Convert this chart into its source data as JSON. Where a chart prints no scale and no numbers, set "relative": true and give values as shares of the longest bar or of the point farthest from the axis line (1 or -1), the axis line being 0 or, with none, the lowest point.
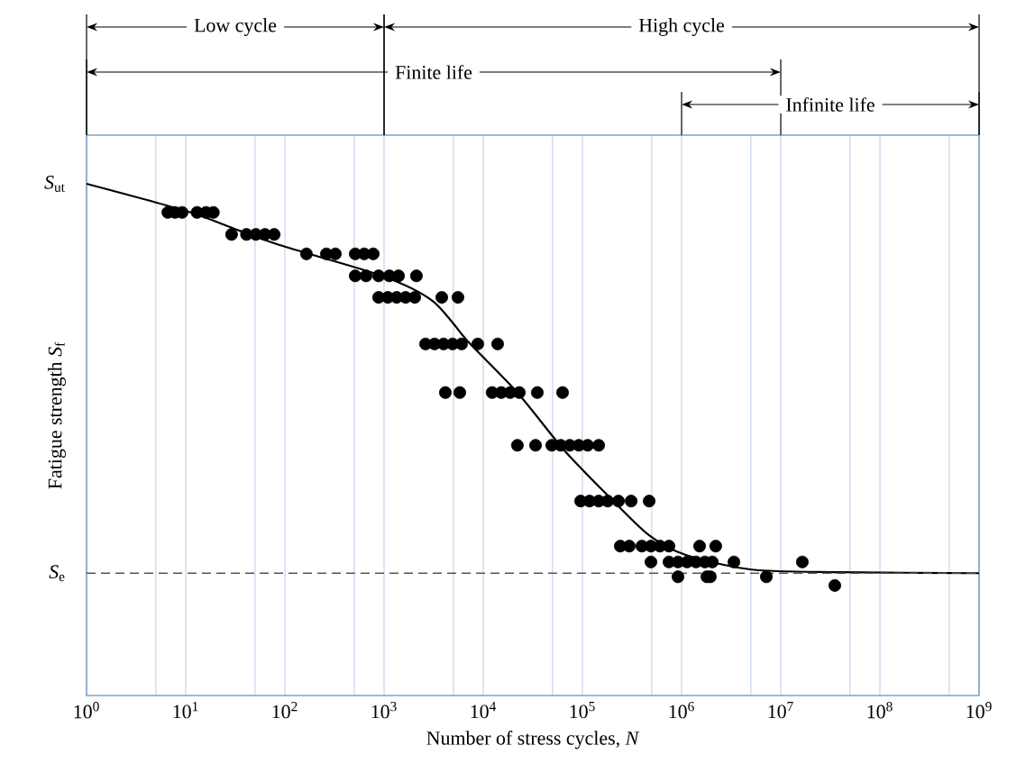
{
  "chart_data": {
    "type": "scatter",
    "relative": true,
    "log": "x",
    "grid": "x",
    "marker": "circle",
    "xlabel": "Number of stress cycles, *N*",
    "ylabel": "Fatigue strength *S*$_{f}$",
    "xlim": [
      1,
      1000000000
    ],
    "xticks": [
      {
        "value": 1,
        "label": "10$^{0}$"
      },
      {
        "value": 5,
        "label": null
      },
      {
        "value": 10,
        "label": "10$^{1}$"
      },
      {
        "value": 50,
        "label": null
      },
      {
        "value": 100,
        "label": "10$^{2}$"
      },
      {
        "value": 500,
        "label": null
      },
      {
        "value": 1000,
        "label": "10$^{3}$"
      },
      {
        "value": 5000,
        "label": null
      },
      {
        "value": 10000,
        "label": "10$^{4}$"
      },
      {
        "value": 50000,
        "label": null
      },
      {
        "value": 100000,
        "label": "10$^{5}$"
      },
      {
        "value": 500000,
        "label": null
      },
      {
        "value": 1000000,
        "label": "10$^{6}$"
      },
      {
        "value": 5000000,
        "label": null
      },
      {
        "value": 10000000,
        "label": "10$^{7}$"
      },
      {
        "value": 50000000,
        "label": null
      },
      {
        "value": 100000000,
        "label": "10$^{8}$"
      },
      {
        "value": 500000000,
        "label": null
      },
      {
        "value": 1000000000,
        "label": "10$^{9}$"
      }
    ],
    "series": [
      {
        "color": "#000000",
        "x": [
          6.6,
          7.8,
          9.2,
          13,
          16,
          19,
          29,
          41,
          51,
          63,
          78,
          165,
          262,
          323,
          512,
          631,
          778,
          512,
          658,
          881,
          1130,
          1400,
          2120,
          881,
          1090,
          1340,
          1650,
          2040,
          3820,
          5560,
          2620,
          3230,
          3980,
          4910,
          6050,
          8810,
          13970,
          4150,
          5800,
          12300,
          15200,
          18700,
          23100,
          35100,
          63100,
          22100,
          33700,
          49100,
          60500,
          74600,
          92000,
          113000,
          146000,
          96000,
          118000,
          146000,
          180000,
          231000,
          310000,
          471000,
          241000,
          297000,
          398000,
          491000,
          605000,
          746000,
          1520000,
          2210000,
          491000,
          746000,
          920000,
          1135000,
          1400000,
          1720000,
          2040000,
          3370000,
          16500000,
          920000,
          1800000,
          1950000,
          7160000,
          35100000
        ],
        "values": [
          0.944,
          0.944,
          0.944,
          0.944,
          0.944,
          0.944,
          0.901,
          0.901,
          0.901,
          0.901,
          0.901,
          0.863,
          0.863,
          0.863,
          0.863,
          0.863,
          0.863,
          0.82,
          0.82,
          0.82,
          0.82,
          0.82,
          0.82,
          0.778,
          0.778,
          0.778,
          0.778,
          0.778,
          0.778,
          0.778,
          0.687,
          0.687,
          0.687,
          0.687,
          0.687,
          0.687,
          0.687,
          0.592,
          0.592,
          0.592,
          0.592,
          0.592,
          0.592,
          0.592,
          0.592,
          0.489,
          0.489,
          0.489,
          0.489,
          0.489,
          0.489,
          0.489,
          0.489,
          0.38,
          0.38,
          0.38,
          0.38,
          0.38,
          0.38,
          0.38,
          0.292,
          0.292,
          0.292,
          0.292,
          0.292,
          0.292,
          0.292,
          0.292,
          0.261,
          0.261,
          0.261,
          0.261,
          0.261,
          0.261,
          0.261,
          0.261,
          0.261,
          0.232,
          0.232,
          0.232,
          0.232,
          0.215
        ]
      },
      {
        "type": "line",
        "color": "#000000",
        "marker": "none",
        "line_style": "solid",
        "x": [
          1,
          10,
          31,
          100,
          955,
          3090,
          7160,
          22100,
          65800,
          180000,
          471000,
          1090000,
          5130000,
          41700000,
          1000000000
        ],
        "values": [
          1.0,
          0.947,
          0.912,
          0.877,
          0.82,
          0.771,
          0.69,
          0.592,
          0.479,
          0.391,
          0.313,
          0.275,
          0.246,
          0.241,
          0.239
        ]
      }
    ],
    "ref_lines": [
      {
        "axis": "y",
        "value": 0.239,
        "label": "*S*$_{e}$",
        "line_style": "dashed",
        "color": "#555555"
      }
    ],
    "annotations": [
      {
        "text": "*S*$_{ut}$",
        "x": 1,
        "y": 1.0
      },
      "Low cycle",
      "High cycle",
      "Finite life",
      "Infinite life"
    ]
  }
}
